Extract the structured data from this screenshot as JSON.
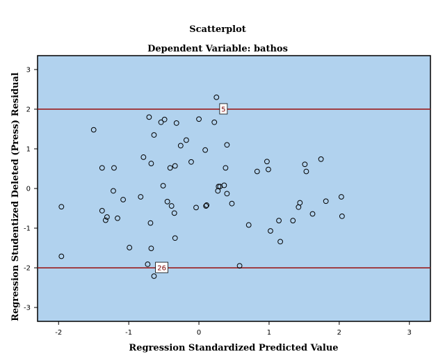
{
  "colors": {
    "plot_background": "#b1d2ee",
    "reference_line": "#9b1c1c",
    "marker_stroke": "#000000",
    "frame": "#000000"
  },
  "chart_data": {
    "type": "scatter",
    "title": "Scatterplot",
    "subtitle": "Dependent Variable: bathos",
    "xlabel": "Regression Standardized Predicted Value",
    "ylabel": "Regression Studentized Deleted (Press) Residual",
    "xlim": [
      -2.3,
      3.3
    ],
    "ylim": [
      -3.35,
      3.35
    ],
    "x_ticks": [
      -2,
      -1,
      0,
      1,
      2,
      3
    ],
    "y_ticks": [
      -3,
      -2,
      -1,
      0,
      1,
      2,
      3
    ],
    "grid": false,
    "marker": "open-circle",
    "reference_lines": [
      {
        "axis": "y",
        "value": 2,
        "label": "5",
        "label_x": 0.35
      },
      {
        "axis": "y",
        "value": -2,
        "label": "26",
        "label_x": -0.53
      }
    ],
    "points": [
      {
        "x": 0.25,
        "y": 2.3
      },
      {
        "x": -0.71,
        "y": 1.8
      },
      {
        "x": -0.49,
        "y": 1.74
      },
      {
        "x": -0.54,
        "y": 1.67
      },
      {
        "x": -0.32,
        "y": 1.65
      },
      {
        "x": 0.0,
        "y": 1.75
      },
      {
        "x": 0.22,
        "y": 1.67
      },
      {
        "x": -1.5,
        "y": 1.48
      },
      {
        "x": -0.64,
        "y": 1.35
      },
      {
        "x": -0.18,
        "y": 1.22
      },
      {
        "x": -0.26,
        "y": 1.08
      },
      {
        "x": 0.4,
        "y": 1.1
      },
      {
        "x": 0.09,
        "y": 0.97
      },
      {
        "x": -0.79,
        "y": 0.79
      },
      {
        "x": -0.11,
        "y": 0.67
      },
      {
        "x": -0.68,
        "y": 0.63
      },
      {
        "x": -0.34,
        "y": 0.57
      },
      {
        "x": -0.41,
        "y": 0.52
      },
      {
        "x": 0.38,
        "y": 0.52
      },
      {
        "x": -1.38,
        "y": 0.52
      },
      {
        "x": -1.21,
        "y": 0.52
      },
      {
        "x": 0.97,
        "y": 0.68
      },
      {
        "x": 0.99,
        "y": 0.48
      },
      {
        "x": 0.83,
        "y": 0.43
      },
      {
        "x": 1.51,
        "y": 0.61
      },
      {
        "x": 1.74,
        "y": 0.74
      },
      {
        "x": 1.53,
        "y": 0.43
      },
      {
        "x": -0.51,
        "y": 0.07
      },
      {
        "x": -1.22,
        "y": -0.06
      },
      {
        "x": 0.28,
        "y": 0.05
      },
      {
        "x": 0.3,
        "y": 0.05
      },
      {
        "x": 0.36,
        "y": 0.08
      },
      {
        "x": 0.27,
        "y": -0.06
      },
      {
        "x": 0.4,
        "y": -0.13
      },
      {
        "x": 0.47,
        "y": -0.38
      },
      {
        "x": -1.08,
        "y": -0.28
      },
      {
        "x": -0.83,
        "y": -0.21
      },
      {
        "x": -0.45,
        "y": -0.33
      },
      {
        "x": -0.39,
        "y": -0.44
      },
      {
        "x": -0.04,
        "y": -0.48
      },
      {
        "x": 0.1,
        "y": -0.44
      },
      {
        "x": 0.11,
        "y": -0.42
      },
      {
        "x": -0.35,
        "y": -0.62
      },
      {
        "x": -1.96,
        "y": -0.46
      },
      {
        "x": -1.38,
        "y": -0.56
      },
      {
        "x": -1.31,
        "y": -0.72
      },
      {
        "x": -1.33,
        "y": -0.8
      },
      {
        "x": -1.16,
        "y": -0.75
      },
      {
        "x": -0.69,
        "y": -0.87
      },
      {
        "x": 1.44,
        "y": -0.36
      },
      {
        "x": 1.42,
        "y": -0.47
      },
      {
        "x": 1.81,
        "y": -0.32
      },
      {
        "x": 2.03,
        "y": -0.21
      },
      {
        "x": 2.04,
        "y": -0.7
      },
      {
        "x": 1.62,
        "y": -0.64
      },
      {
        "x": 0.71,
        "y": -0.92
      },
      {
        "x": 1.14,
        "y": -0.81
      },
      {
        "x": 1.34,
        "y": -0.81
      },
      {
        "x": 1.02,
        "y": -1.07
      },
      {
        "x": 1.16,
        "y": -1.34
      },
      {
        "x": -0.34,
        "y": -1.25
      },
      {
        "x": -0.99,
        "y": -1.49
      },
      {
        "x": -0.68,
        "y": -1.51
      },
      {
        "x": -1.96,
        "y": -1.71
      },
      {
        "x": -0.73,
        "y": -1.91
      },
      {
        "x": 0.58,
        "y": -1.95
      },
      {
        "x": -0.64,
        "y": -2.21
      }
    ]
  }
}
